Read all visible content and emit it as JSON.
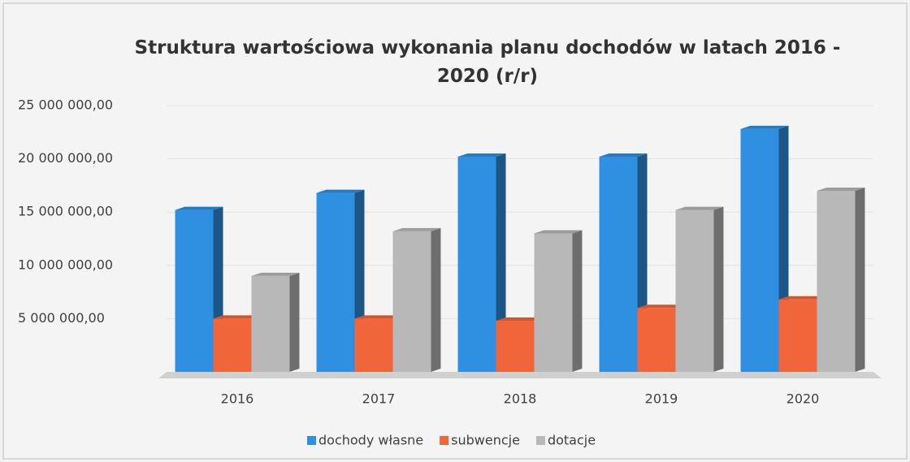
{
  "chart_data": {
    "type": "bar",
    "title": "Struktura wartościowa wykonania planu dochodów w latach 2016 - 2020 (r/r)",
    "categories": [
      "2016",
      "2017",
      "2018",
      "2019",
      "2020"
    ],
    "series": [
      {
        "name": "dochody własne",
        "color": "#2f8fe0",
        "values": [
          15200000,
          16800000,
          20200000,
          20200000,
          22800000
        ]
      },
      {
        "name": "subwencje",
        "color": "#f0663a",
        "values": [
          5000000,
          5000000,
          4800000,
          6000000,
          6800000
        ]
      },
      {
        "name": "dotacje",
        "color": "#b8b8b8",
        "values": [
          9000000,
          13200000,
          13000000,
          15200000,
          17000000
        ]
      }
    ],
    "ylim": [
      0,
      25000000
    ],
    "yticks": [
      {
        "value": 5000000,
        "label": "5 000 000,00"
      },
      {
        "value": 10000000,
        "label": "10 000 000,00"
      },
      {
        "value": 15000000,
        "label": "15 000 000,00"
      },
      {
        "value": 20000000,
        "label": "20 000 000,00"
      },
      {
        "value": 25000000,
        "label": "25 000 000,00"
      }
    ],
    "grid": true,
    "legend": "bottom"
  }
}
